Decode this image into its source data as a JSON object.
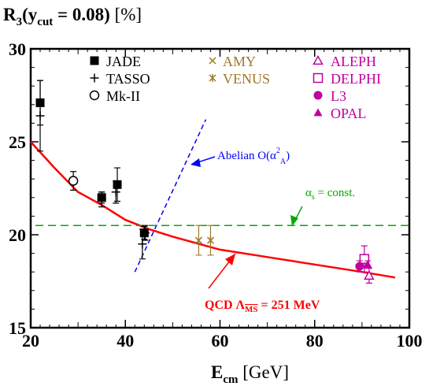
{
  "chart_data": {
    "type": "scatter",
    "title": {
      "main": "R",
      "sub": "3",
      "cut_main": "(y",
      "cut_sub": "cut",
      "cut_rest": " = 0.08)",
      "unit": " [%]"
    },
    "xlabel": {
      "main": "E",
      "sub": "cm",
      "unit": " [GeV]"
    },
    "xlim": [
      20,
      100
    ],
    "ylim": [
      15,
      30
    ],
    "x_ticks": [
      20,
      40,
      60,
      80,
      100
    ],
    "y_ticks": [
      15,
      20,
      25,
      30
    ],
    "x_tick_labels": [
      "20",
      "40",
      "60",
      "80",
      "100"
    ],
    "y_tick_labels": [
      "15",
      "20",
      "25",
      "30"
    ],
    "legend_position": "top",
    "series": [
      {
        "name": "JADE",
        "marker": "filled-square",
        "color": "#000000",
        "points": [
          {
            "x": 22,
            "y": 27.1,
            "err": 1.2
          },
          {
            "x": 35,
            "y": 22.0,
            "err": 0.3
          },
          {
            "x": 38.3,
            "y": 22.7,
            "err": 0.9
          },
          {
            "x": 44,
            "y": 20.1,
            "err": 0.35
          }
        ]
      },
      {
        "name": "TASSO",
        "marker": "plus",
        "color": "#000000",
        "points": [
          {
            "x": 22,
            "y": 26.4,
            "err": 1.9
          },
          {
            "x": 35,
            "y": 21.9,
            "err": 0.4
          },
          {
            "x": 38,
            "y": 22.3,
            "err": 0.6
          },
          {
            "x": 43.6,
            "y": 19.5,
            "err": 0.8
          },
          {
            "x": 44.2,
            "y": 20.1,
            "err": 0.4
          }
        ]
      },
      {
        "name": "Mk-II",
        "marker": "open-circle",
        "color": "#000000",
        "points": [
          {
            "x": 29,
            "y": 22.9,
            "err": 0.5
          }
        ]
      },
      {
        "name": "AMY",
        "marker": "cross",
        "color": "#a0782a",
        "points": [
          {
            "x": 55.5,
            "y": 19.7,
            "err": 0.8
          }
        ]
      },
      {
        "name": "VENUS",
        "marker": "asterisk",
        "color": "#a0782a",
        "points": [
          {
            "x": 58,
            "y": 19.7,
            "err": 0.8
          }
        ]
      },
      {
        "name": "ALEPH",
        "marker": "open-triangle",
        "color": "#c000a0",
        "points": [
          {
            "x": 91.5,
            "y": 17.8,
            "err": 0.4
          }
        ]
      },
      {
        "name": "DELPHI",
        "marker": "open-square",
        "color": "#c000a0",
        "points": [
          {
            "x": 90.5,
            "y": 18.7,
            "err": 0.7
          }
        ]
      },
      {
        "name": "L3",
        "marker": "filled-circle",
        "color": "#c000a0",
        "points": [
          {
            "x": 89.5,
            "y": 18.3,
            "err": 0.3
          }
        ]
      },
      {
        "name": "OPAL",
        "marker": "filled-triangle",
        "color": "#c000a0",
        "points": [
          {
            "x": 91.2,
            "y": 18.4,
            "err": 0.2
          }
        ]
      }
    ],
    "curves": [
      {
        "id": "qcd",
        "color": "#ff0000",
        "style": "solid",
        "points": [
          [
            20,
            25.0
          ],
          [
            25,
            23.6
          ],
          [
            30,
            22.3
          ],
          [
            35,
            21.6
          ],
          [
            40,
            20.8
          ],
          [
            45,
            20.3
          ],
          [
            50,
            19.9
          ],
          [
            60,
            19.2
          ],
          [
            70,
            18.8
          ],
          [
            80,
            18.4
          ],
          [
            90,
            18.0
          ],
          [
            97,
            17.7
          ]
        ]
      },
      {
        "id": "abelian",
        "color": "#0000ff",
        "style": "dashed",
        "points": [
          [
            42,
            18.0
          ],
          [
            57,
            26.2
          ]
        ]
      },
      {
        "id": "const",
        "color": "#00aa00",
        "style": "dashed",
        "points": [
          [
            21,
            20.5
          ],
          [
            100,
            20.5
          ]
        ]
      }
    ],
    "annotations": {
      "qcd_label": "QCD  Λ",
      "qcd_sub": "MS",
      "qcd_value": " = 251 MeV",
      "abelian_label": "Abelian O(α",
      "abelian_sup": "2",
      "abelian_sub": "A",
      "abelian_close": ")",
      "const_alpha": "α",
      "const_sub": "s",
      "const_rest": " = const."
    },
    "legend_labels": {
      "JADE": "JADE",
      "TASSO": "TASSO",
      "Mk-II": "Mk-II",
      "AMY": "AMY",
      "VENUS": "VENUS",
      "ALEPH": "ALEPH",
      "DELPHI": "DELPHI",
      "L3": "L3",
      "OPAL": "OPAL"
    },
    "colors": {
      "qcd": "#ff0000",
      "abelian": "#0000ff",
      "const": "#00aa00",
      "black": "#000000",
      "brown": "#a0782a",
      "magenta": "#c000a0"
    },
    "grid": false
  }
}
